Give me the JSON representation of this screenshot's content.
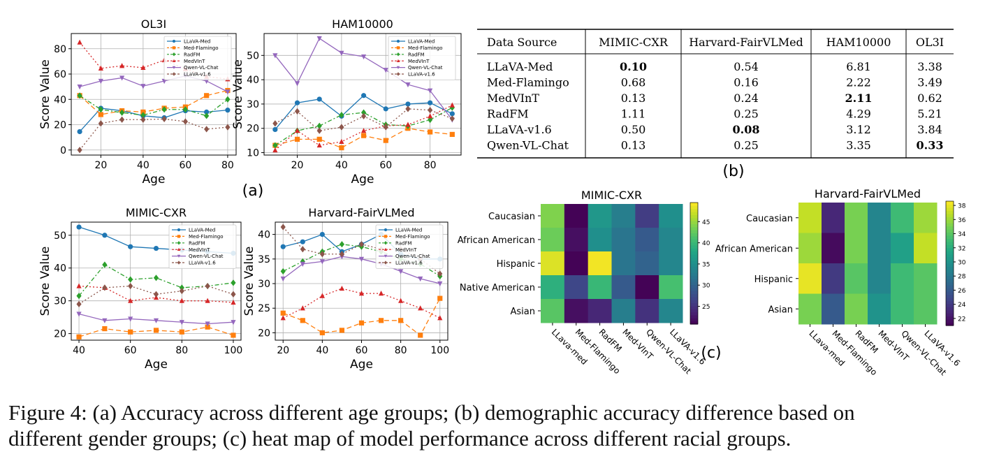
{
  "caption": {
    "line1": "Figure 4: (a) Accuracy across different age groups; (b) demographic accuracy difference based on",
    "line2": "different gender groups; (c) heat map of model performance across different racial groups."
  },
  "panel_labels": {
    "a": "(a)",
    "b": "(b)",
    "c": "(c)"
  },
  "colors": {
    "LLaVA-Med": "#1f77b4",
    "Med-Flamingo": "#ff7f0e",
    "RadFM": "#2ca02c",
    "MedVInT": "#d62728",
    "Qwen-VL-Chat": "#9467bd",
    "LLaVA-v1.6": "#8c564b"
  },
  "legend_labels": [
    "LLaVA-Med",
    "Med-Flamingo",
    "RadFM",
    "MedVInT",
    "Qwen-VL-Chat",
    "LLaVA-v1.6"
  ],
  "chart_data": [
    {
      "type": "line",
      "title": "OL3I",
      "xlabel": "Age",
      "ylabel": "Score Value",
      "x": [
        10,
        20,
        30,
        40,
        50,
        60,
        70,
        80
      ],
      "xlim": [
        6,
        84
      ],
      "ylim": [
        -4,
        92
      ],
      "xticks": [
        20,
        40,
        60,
        80
      ],
      "yticks": [
        0,
        20,
        40,
        60,
        80
      ],
      "series": [
        {
          "name": "LLaVA-Med",
          "values": [
            14.5,
            33,
            31,
            27,
            25.5,
            31,
            30,
            31.5
          ]
        },
        {
          "name": "Med-Flamingo",
          "values": [
            43,
            28,
            31,
            30,
            33,
            34,
            43,
            47
          ]
        },
        {
          "name": "RadFM",
          "values": [
            43,
            32,
            29.5,
            27.5,
            32,
            32,
            27,
            40
          ]
        },
        {
          "name": "MedVInT",
          "values": [
            85,
            64.5,
            66.5,
            65,
            71,
            64,
            58,
            56
          ]
        },
        {
          "name": "Qwen-VL-Chat",
          "values": [
            50,
            54.5,
            57,
            50.5,
            54.5,
            58.5,
            54.5,
            46
          ]
        },
        {
          "name": "LLaVA-v1.6",
          "values": [
            0,
            21,
            24,
            24,
            24.5,
            22.5,
            16.5,
            18
          ]
        }
      ]
    },
    {
      "type": "line",
      "title": "HAM10000",
      "xlabel": "Age",
      "ylabel": "Score Value",
      "x": [
        10,
        20,
        30,
        40,
        50,
        60,
        70,
        80,
        90
      ],
      "xlim": [
        5,
        94
      ],
      "ylim": [
        9,
        59
      ],
      "xticks": [
        20,
        40,
        60,
        80
      ],
      "yticks": [
        10,
        20,
        30,
        40,
        50
      ],
      "series": [
        {
          "name": "LLaVA-Med",
          "values": [
            19.5,
            30.5,
            32,
            25,
            33.5,
            28,
            30,
            30.5,
            26
          ]
        },
        {
          "name": "Med-Flamingo",
          "values": [
            13,
            15.5,
            15.5,
            12,
            17,
            15,
            20,
            18.5,
            17.5
          ]
        },
        {
          "name": "RadFM",
          "values": [
            13,
            19,
            21,
            25.5,
            26.5,
            21.5,
            21,
            23.5,
            28.5
          ]
        },
        {
          "name": "MedVInT",
          "values": [
            11,
            19,
            13,
            14.5,
            19,
            21,
            21.5,
            25,
            29.5
          ]
        },
        {
          "name": "Qwen-VL-Chat",
          "values": [
            50,
            38.5,
            57,
            51,
            49.5,
            44,
            38,
            35.5,
            23.5
          ]
        },
        {
          "name": "LLaVA-v1.6",
          "values": [
            22,
            27,
            19,
            20.5,
            25,
            20.5,
            28,
            27.5,
            24
          ]
        }
      ]
    },
    {
      "type": "line",
      "title": "MIMIC-CXR",
      "xlabel": "Age",
      "ylabel": "Score Value",
      "x": [
        40,
        50,
        60,
        70,
        80,
        90,
        100
      ],
      "xlim": [
        37,
        103
      ],
      "ylim": [
        18,
        54
      ],
      "xticks": [
        40,
        60,
        80,
        100
      ],
      "yticks": [
        20,
        30,
        40,
        50
      ],
      "series": [
        {
          "name": "LLaVA-Med",
          "values": [
            52.5,
            50,
            46.5,
            46,
            45.5,
            45,
            44.5
          ]
        },
        {
          "name": "Med-Flamingo",
          "values": [
            19,
            21.5,
            20.5,
            21,
            20.5,
            22,
            19.5
          ]
        },
        {
          "name": "RadFM",
          "values": [
            31.5,
            41,
            36.5,
            37,
            34,
            34.5,
            35.5
          ]
        },
        {
          "name": "MedVInT",
          "values": [
            34.5,
            34,
            30,
            31,
            30,
            30,
            29.5
          ]
        },
        {
          "name": "Qwen-VL-Chat",
          "values": [
            26,
            24,
            24.5,
            24,
            23.5,
            23,
            23.5
          ]
        },
        {
          "name": "LLaVA-v1.6",
          "values": [
            29,
            34,
            34.5,
            32,
            33,
            34.5,
            32
          ]
        }
      ]
    },
    {
      "type": "line",
      "title": "Harvard-FairVLMed",
      "xlabel": "Age",
      "ylabel": "",
      "x": [
        20,
        30,
        40,
        50,
        60,
        70,
        80,
        90,
        100
      ],
      "xlim": [
        16,
        104
      ],
      "ylim": [
        18.5,
        42.5
      ],
      "xticks": [
        20,
        40,
        60,
        80,
        100
      ],
      "yticks": [
        20,
        25,
        30,
        35,
        40
      ],
      "series": [
        {
          "name": "LLaVA-Med",
          "values": [
            37.5,
            38.5,
            40,
            36.5,
            38,
            40,
            36,
            35,
            35
          ]
        },
        {
          "name": "Med-Flamingo",
          "values": [
            24,
            22.5,
            20,
            20.5,
            22,
            22.5,
            22.5,
            19.5,
            27
          ]
        },
        {
          "name": "RadFM",
          "values": [
            32.5,
            34.5,
            36.5,
            38,
            37.5,
            36.5,
            35,
            34,
            31.5
          ]
        },
        {
          "name": "MedVInT",
          "values": [
            23,
            25,
            27.5,
            29,
            28,
            28,
            26.5,
            25,
            23
          ]
        },
        {
          "name": "Qwen-VL-Chat",
          "values": [
            31,
            34,
            34.5,
            35.5,
            35,
            34,
            32.5,
            31,
            30
          ]
        },
        {
          "name": "LLaVA-v1.6",
          "values": [
            41.5,
            37,
            36,
            36,
            38,
            37,
            37,
            35,
            32
          ]
        }
      ]
    },
    {
      "type": "table",
      "title": "(b)",
      "columns": [
        "Data Source",
        "MIMIC-CXR",
        "Harvard-FairVLMed",
        "HAM10000",
        "OL3I"
      ],
      "rows": [
        {
          "label": "LLaVA-Med",
          "values": [
            "0.10",
            "0.54",
            "6.81",
            "3.38"
          ],
          "bold": [
            true,
            false,
            false,
            false
          ]
        },
        {
          "label": "Med-Flamingo",
          "values": [
            "0.68",
            "0.16",
            "2.22",
            "3.49"
          ],
          "bold": [
            false,
            false,
            false,
            false
          ]
        },
        {
          "label": "MedVInT",
          "values": [
            "0.13",
            "0.24",
            "2.11",
            "0.62"
          ],
          "bold": [
            false,
            false,
            true,
            false
          ]
        },
        {
          "label": "RadFM",
          "values": [
            "1.11",
            "0.25",
            "4.29",
            "5.21"
          ],
          "bold": [
            false,
            false,
            false,
            false
          ]
        },
        {
          "label": "LLaVA-v1.6",
          "values": [
            "0.50",
            "0.08",
            "3.12",
            "3.84"
          ],
          "bold": [
            false,
            true,
            false,
            false
          ]
        },
        {
          "label": "Qwen-VL-Chat",
          "values": [
            "0.13",
            "0.25",
            "3.35",
            "0.33"
          ],
          "bold": [
            false,
            false,
            false,
            true
          ]
        }
      ]
    },
    {
      "type": "heatmap",
      "title": "MIMIC-CXR",
      "rows": [
        "Caucasian",
        "African American",
        "Hispanic",
        "Native American",
        "Asian"
      ],
      "cols": [
        "LLava-med",
        "Med-Flamingo",
        "RadFM",
        "Med-VInT",
        "Qwen-VL-Chat",
        "LLaVA-v1.6"
      ],
      "values": [
        [
          44,
          21,
          36,
          33,
          26,
          35
        ],
        [
          43,
          22,
          35,
          32,
          29,
          34
        ],
        [
          48,
          21,
          49,
          32,
          30,
          34
        ],
        [
          39,
          27,
          40,
          29,
          21,
          41
        ],
        [
          42,
          22,
          24,
          33,
          25,
          34
        ]
      ],
      "vmin": 20.8,
      "vmax": 49.5,
      "colorbar_ticks": [
        25,
        30,
        35,
        40,
        45
      ]
    },
    {
      "type": "heatmap",
      "title": "Harvard-FairVLMed",
      "rows": [
        "Caucasian",
        "African American",
        "Hispanic",
        "Asian"
      ],
      "cols": [
        "LLava-med",
        "Med-Flamingo",
        "RadFM",
        "Med-VInT",
        "Qwen-VL-Chat",
        "LLaVA-v1.6"
      ],
      "values": [
        [
          37,
          23,
          35,
          29,
          33,
          36
        ],
        [
          36,
          21.5,
          35,
          29,
          31,
          37
        ],
        [
          38,
          24,
          34,
          29,
          33,
          34
        ],
        [
          35,
          26,
          35,
          30,
          33,
          34
        ]
      ],
      "vmin": 21,
      "vmax": 38.6,
      "colorbar_ticks": [
        22,
        24,
        26,
        28,
        30,
        32,
        34,
        36,
        38
      ]
    }
  ]
}
